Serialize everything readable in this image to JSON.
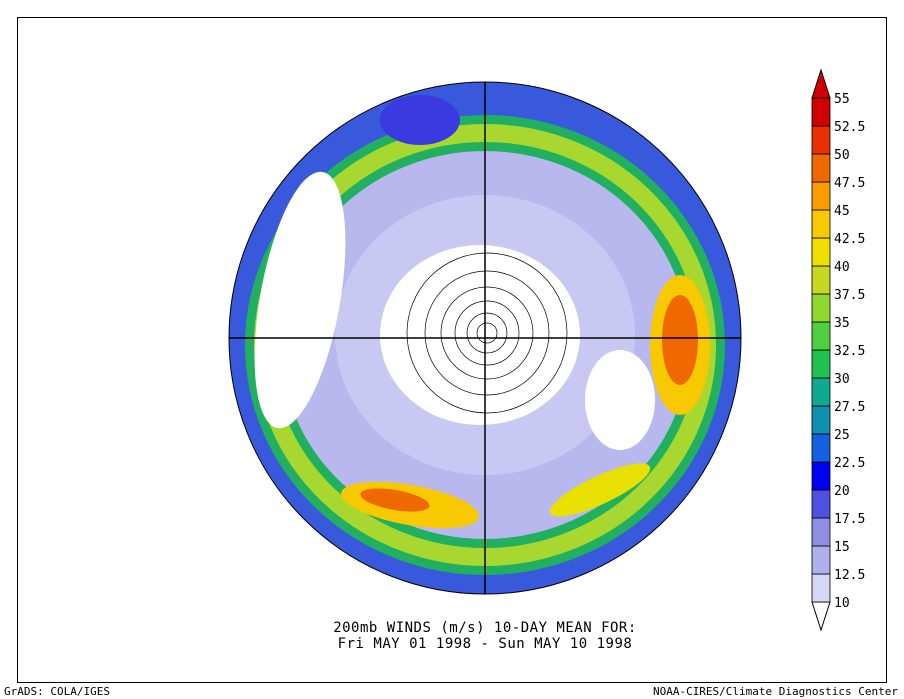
{
  "map": {
    "title_line1": "200mb WINDS (m/s)   10-DAY MEAN FOR:",
    "title_line2": "Fri MAY 01 1998 - Sun MAY 10 1998",
    "credit_left": "GrADS: COLA/IGES",
    "credit_right": "NOAA-CIRES/Climate Diagnostics Center",
    "projection": "north polar stereographic",
    "variable": "wind speed",
    "units": "m/s"
  },
  "colorbar": {
    "levels": [
      "10",
      "12.5",
      "15",
      "17.5",
      "20",
      "22.5",
      "25",
      "27.5",
      "30",
      "32.5",
      "35",
      "37.5",
      "40",
      "42.5",
      "45",
      "47.5",
      "50",
      "52.5",
      "55"
    ],
    "colors": [
      "#ffffff",
      "#d6d6f5",
      "#b0b0ec",
      "#8e8ee3",
      "#5050e0",
      "#0000f0",
      "#1460e0",
      "#1090b0",
      "#10a890",
      "#20c050",
      "#50d040",
      "#90d830",
      "#c8d820",
      "#f0e000",
      "#f8c800",
      "#f89c00",
      "#f06800",
      "#e83000",
      "#d00000"
    ]
  }
}
